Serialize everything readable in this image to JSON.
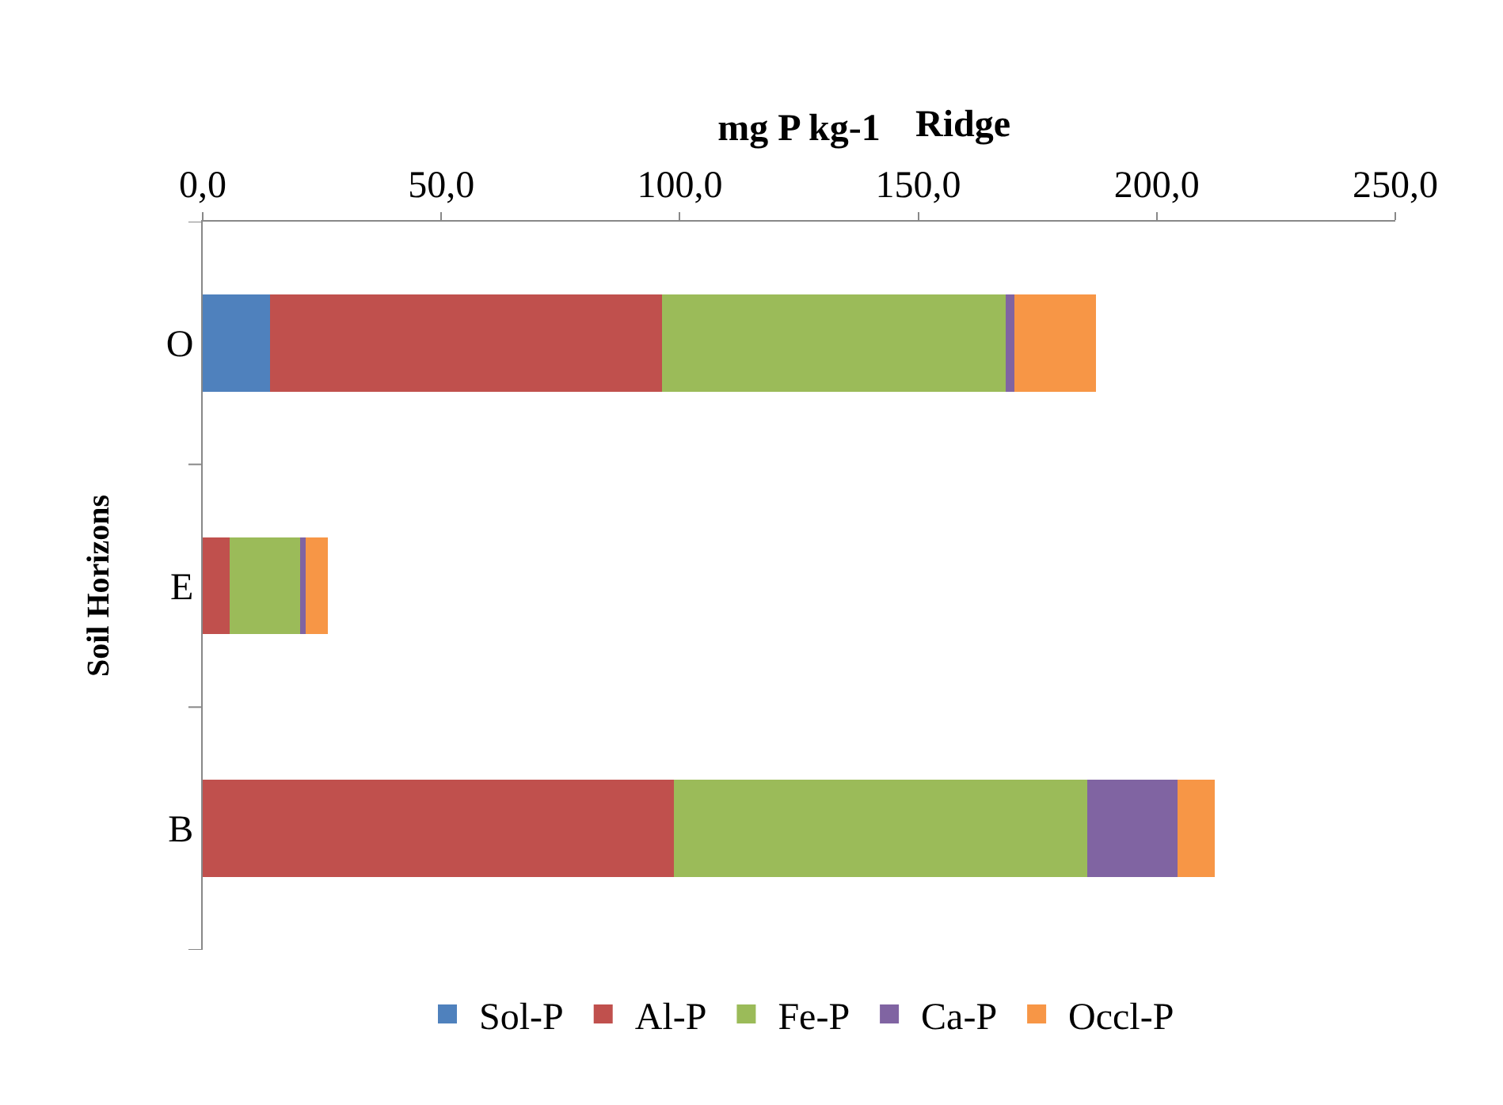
{
  "chart_data": {
    "type": "bar",
    "orientation": "horizontal",
    "stacked": true,
    "title": "Ridge",
    "xlabel": "mg P kg-1",
    "ylabel": "Soil Horizons",
    "categories": [
      "O",
      "E",
      "B"
    ],
    "series": [
      {
        "name": "Sol-P",
        "color": "#4f81bd",
        "values": [
          14.1,
          0,
          0
        ]
      },
      {
        "name": "Al-P",
        "color": "#c0504d",
        "values": [
          82.1,
          5.6,
          98.8
        ]
      },
      {
        "name": "Fe-P",
        "color": "#9bbb59",
        "values": [
          72.2,
          14.8,
          86.7
        ]
      },
      {
        "name": "Ca-P",
        "color": "#8064a2",
        "values": [
          1.8,
          1.2,
          18.8
        ]
      },
      {
        "name": "Occl-P",
        "color": "#f79646",
        "values": [
          17.0,
          4.7,
          7.9
        ]
      }
    ],
    "xlim": [
      0,
      250
    ],
    "xticks": [
      {
        "value": 0,
        "label": "0,0"
      },
      {
        "value": 50,
        "label": "50,0"
      },
      {
        "value": 100,
        "label": "100,0"
      },
      {
        "value": 150,
        "label": "150,0"
      },
      {
        "value": 200,
        "label": "200,0"
      },
      {
        "value": 250,
        "label": "250,0"
      }
    ],
    "legend": "bottom"
  }
}
